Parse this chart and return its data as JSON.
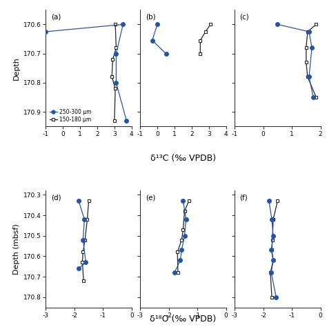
{
  "xlabel_top": "δ¹³C (‰ VPDB)",
  "xlabel_bot": "δ¹⁸O (‰ VPDB)",
  "ylabel_top": "Depth",
  "ylabel_bottom": "Depth (mbsf)",
  "legend_labels": [
    "250-300 μm",
    "150-180 μm"
  ],
  "blue_color": "#2255aa",
  "black_color": "#222222",
  "subplot_labels": [
    "(a)",
    "(b)",
    "(c)",
    "(d)",
    "(e)",
    "(f)"
  ],
  "panel_a": {
    "blue_x": [
      -1.0,
      3.5,
      3.1,
      3.1,
      3.7
    ],
    "blue_y": [
      170.625,
      170.6,
      170.7,
      170.8,
      170.93
    ],
    "black_x": [
      3.05,
      3.1,
      2.9,
      2.85,
      3.05,
      3.0
    ],
    "black_y": [
      170.6,
      170.68,
      170.72,
      170.78,
      170.82,
      170.93
    ],
    "xlim": [
      -1,
      4
    ],
    "xticks": [
      -1,
      0,
      1,
      2,
      3,
      4
    ],
    "ylim": [
      170.95,
      170.55
    ],
    "yticks": [
      170.6,
      170.7,
      170.8,
      170.9
    ]
  },
  "panel_b": {
    "blue_x": [
      0.0,
      -0.3,
      0.5
    ],
    "blue_y": [
      170.6,
      170.655,
      170.7
    ],
    "black_x": [
      3.1,
      2.8,
      2.5,
      2.5
    ],
    "black_y": [
      170.6,
      170.625,
      170.655,
      170.7
    ],
    "xlim": [
      -1,
      4
    ],
    "xticks": [
      -1,
      0,
      1,
      2,
      3,
      4
    ],
    "ylim": [
      170.95,
      170.55
    ],
    "yticks": [
      170.6,
      170.7,
      170.8,
      170.9
    ]
  },
  "panel_c": {
    "blue_x": [
      0.5,
      1.6,
      1.7,
      1.6,
      1.75
    ],
    "blue_y": [
      170.6,
      170.625,
      170.68,
      170.78,
      170.85
    ],
    "black_x": [
      1.85,
      1.55,
      1.5,
      1.5,
      1.55,
      1.85
    ],
    "black_y": [
      170.6,
      170.625,
      170.68,
      170.73,
      170.78,
      170.85
    ],
    "xlim": [
      -1,
      2
    ],
    "xticks": [
      -1,
      0,
      1,
      2
    ],
    "ylim": [
      170.95,
      170.55
    ],
    "yticks": [
      170.6,
      170.7,
      170.8,
      170.9
    ]
  },
  "panel_d": {
    "blue_x": [
      -1.85,
      -1.65,
      -1.7,
      -1.6,
      -1.85
    ],
    "blue_y": [
      170.33,
      170.42,
      170.52,
      170.63,
      170.66
    ],
    "black_x": [
      -1.5,
      -1.55,
      -1.63,
      -1.7,
      -1.72,
      -1.68
    ],
    "black_y": [
      170.33,
      170.42,
      170.52,
      170.58,
      170.63,
      170.72
    ],
    "xlim": [
      -3,
      0
    ],
    "xticks": [
      -3,
      -2,
      -1,
      0
    ],
    "ylim": [
      170.85,
      170.28
    ],
    "yticks": [
      170.3,
      170.4,
      170.5,
      170.6,
      170.7,
      170.8
    ]
  },
  "panel_e": {
    "blue_x": [
      -1.5,
      -1.4,
      -1.45,
      -1.55,
      -1.6,
      -1.8
    ],
    "blue_y": [
      170.33,
      170.42,
      170.5,
      170.57,
      170.62,
      170.68
    ],
    "black_x": [
      -1.3,
      -1.45,
      -1.5,
      -1.55,
      -1.7,
      -1.68
    ],
    "black_y": [
      170.33,
      170.38,
      170.47,
      170.52,
      170.58,
      170.68
    ],
    "xlim": [
      -3,
      0
    ],
    "xticks": [
      -3,
      -2,
      -1,
      0
    ],
    "ylim": [
      170.85,
      170.28
    ],
    "yticks": [
      170.3,
      170.4,
      170.5,
      170.6,
      170.7,
      170.8
    ]
  },
  "panel_f": {
    "blue_x": [
      -1.8,
      -1.7,
      -1.65,
      -1.72,
      -1.65,
      -1.72,
      -1.55
    ],
    "blue_y": [
      170.33,
      170.42,
      170.5,
      170.57,
      170.62,
      170.68,
      170.8
    ],
    "black_x": [
      -1.5,
      -1.65,
      -1.68,
      -1.7,
      -1.65,
      -1.75,
      -1.7
    ],
    "black_y": [
      170.33,
      170.42,
      170.52,
      170.57,
      170.62,
      170.68,
      170.8
    ],
    "xlim": [
      -3,
      0
    ],
    "xticks": [
      -3,
      -2,
      -1,
      0
    ],
    "ylim": [
      170.85,
      170.28
    ],
    "yticks": [
      170.3,
      170.4,
      170.5,
      170.6,
      170.7,
      170.8
    ]
  }
}
